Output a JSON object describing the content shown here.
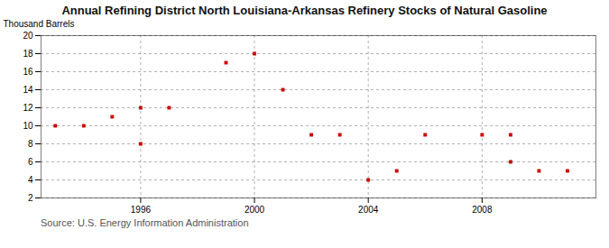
{
  "chart_data": {
    "type": "scatter",
    "title": "Annual Refining District North Louisiana-Arkansas Refinery Stocks of Natural Gasoline",
    "ylabel": "Thousand Barrels",
    "source": "Source: U.S. Energy Information Administration",
    "x": [
      1993,
      1994,
      1995,
      1996,
      1996,
      1997,
      1999,
      2000,
      2001,
      2002,
      2003,
      2004,
      2005,
      2006,
      2008,
      2009,
      2009,
      2010,
      2011
    ],
    "values": [
      10,
      10,
      11,
      8,
      12,
      12,
      17,
      18,
      14,
      9,
      9,
      4,
      5,
      9,
      9,
      6,
      9,
      5,
      5
    ],
    "color": "#cc0000",
    "marker": "square",
    "xlim": [
      1992.5,
      2012.0
    ],
    "ylim": [
      2,
      20
    ],
    "xticks": [
      1996,
      2000,
      2004,
      2008
    ],
    "yticks": [
      2,
      4,
      6,
      8,
      10,
      12,
      14,
      16,
      18,
      20
    ],
    "grid": true
  }
}
